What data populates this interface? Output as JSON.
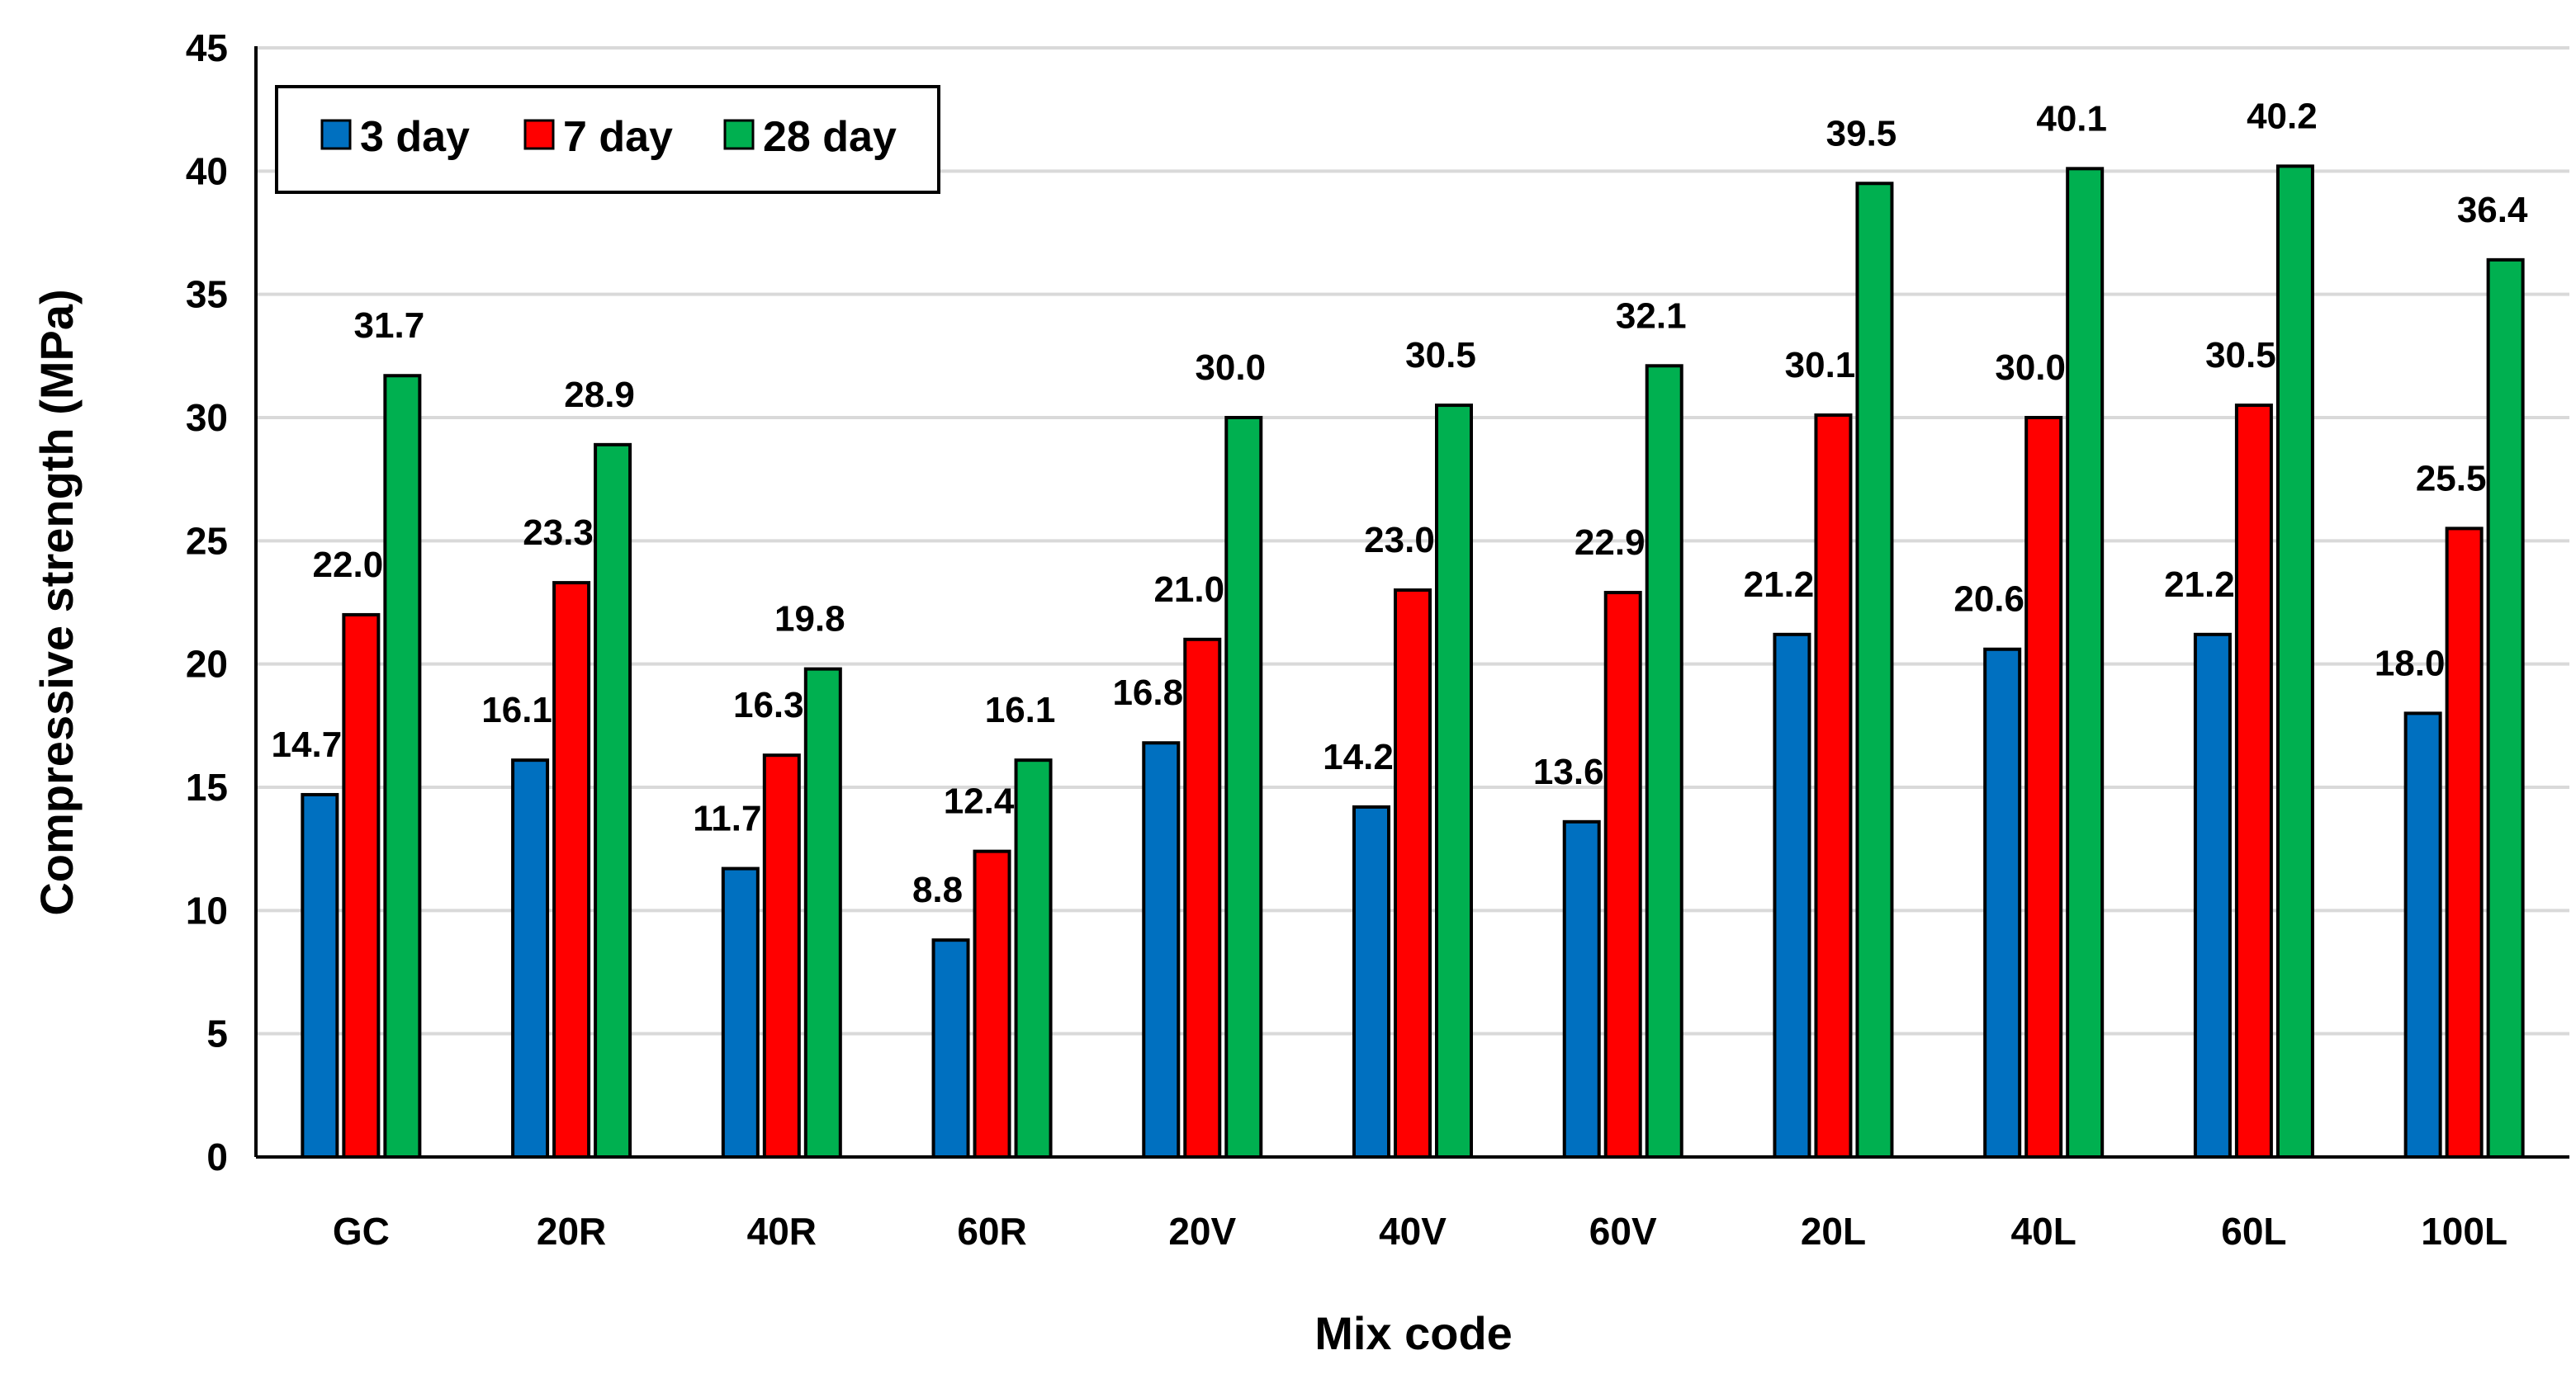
{
  "chart_data": {
    "type": "bar",
    "title": "",
    "xlabel": "Mix code",
    "ylabel": "Compressive strength (MPa)",
    "ylim": [
      0,
      45
    ],
    "yticks": [
      0,
      5,
      10,
      15,
      20,
      25,
      30,
      35,
      40,
      45
    ],
    "grid": true,
    "legend_position": "top-left",
    "categories": [
      "GC",
      "20R",
      "40R",
      "60R",
      "20V",
      "40V",
      "60V",
      "20L",
      "40L",
      "60L",
      "100L"
    ],
    "series": [
      {
        "name": "3 day",
        "color": "#0070C0",
        "values": [
          14.7,
          16.1,
          11.7,
          8.8,
          16.8,
          14.2,
          13.6,
          21.2,
          20.6,
          21.2,
          18.0
        ],
        "labels": [
          "14.7",
          "16.1",
          "11.7",
          "8.8",
          "16.8",
          "14.2",
          "13.6",
          "21.2",
          "20.6",
          "21.2",
          "18.0"
        ]
      },
      {
        "name": "7 day",
        "color": "#FF0000",
        "values": [
          22.0,
          23.3,
          16.3,
          12.4,
          21.0,
          23.0,
          22.9,
          30.1,
          30.0,
          30.5,
          25.5
        ],
        "labels": [
          "22.0",
          "23.3",
          "16.3",
          "12.4",
          "21.0",
          "23.0",
          "22.9",
          "30.1",
          "30.0",
          "30.5",
          "25.5"
        ]
      },
      {
        "name": "28 day",
        "color": "#00B050",
        "values": [
          31.7,
          28.9,
          19.8,
          16.1,
          30.0,
          30.5,
          32.1,
          39.5,
          40.1,
          40.2,
          36.4
        ],
        "labels": [
          "31.7",
          "28.9",
          "19.8",
          "16.1",
          "30.0",
          "30.5",
          "32.1",
          "39.5",
          "40.1",
          "40.2",
          "36.4"
        ]
      }
    ]
  }
}
